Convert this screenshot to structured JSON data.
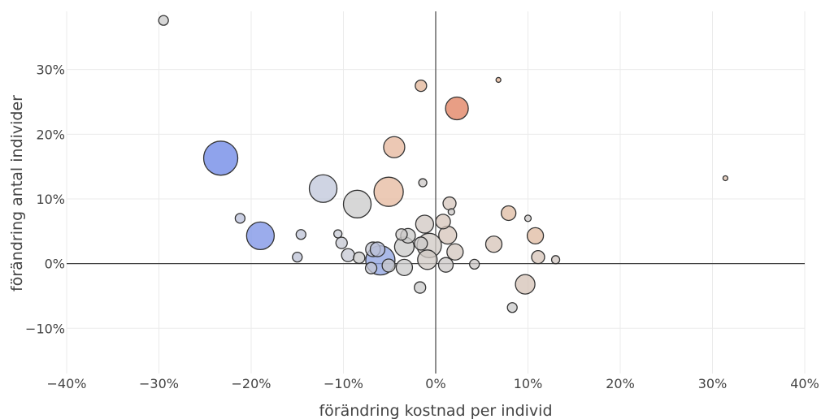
{
  "chart_data": {
    "type": "scatter",
    "title": "",
    "xlabel": "förändring kostnad per individ",
    "ylabel": "förändring antal individer",
    "xlim": [
      -40,
      40
    ],
    "ylim": [
      -17,
      39
    ],
    "x_ticks": [
      -40,
      -30,
      -20,
      -10,
      0,
      10,
      20,
      30,
      40
    ],
    "x_tick_labels": [
      "−40%",
      "−30%",
      "−20%",
      "−10%",
      "0%",
      "10%",
      "20%",
      "30%",
      "40%"
    ],
    "y_ticks": [
      -10,
      0,
      10,
      20,
      30
    ],
    "y_tick_labels": [
      "−10%",
      "0%",
      "10%",
      "20%",
      "30%"
    ],
    "grid": true,
    "zero_lines": true,
    "legend": "none",
    "bubble_style": {
      "stroke": "#333333",
      "opacity": 0.75
    },
    "points": [
      {
        "x": -29.5,
        "y": 37.6,
        "size": 6,
        "color": "#c9c9c9"
      },
      {
        "x": 6.8,
        "y": 28.4,
        "size": 3,
        "color": "#e3b394"
      },
      {
        "x": -1.6,
        "y": 27.5,
        "size": 7,
        "color": "#e2b497"
      },
      {
        "x": 2.3,
        "y": 24.0,
        "size": 14,
        "color": "#e07d5c"
      },
      {
        "x": -23.3,
        "y": 16.3,
        "size": 21,
        "color": "#6a84e6"
      },
      {
        "x": -4.5,
        "y": 18.0,
        "size": 13,
        "color": "#e5b59b"
      },
      {
        "x": 31.4,
        "y": 13.2,
        "size": 3,
        "color": "#dcc0ad"
      },
      {
        "x": -1.4,
        "y": 12.5,
        "size": 5,
        "color": "#cbc7c5"
      },
      {
        "x": -12.2,
        "y": 11.6,
        "size": 17,
        "color": "#bfc5d9"
      },
      {
        "x": -5.1,
        "y": 11.1,
        "size": 18,
        "color": "#e5b89e"
      },
      {
        "x": -8.5,
        "y": 9.2,
        "size": 17,
        "color": "#c9c9c9"
      },
      {
        "x": 1.5,
        "y": 9.3,
        "size": 8,
        "color": "#d6c6bc"
      },
      {
        "x": 1.7,
        "y": 8.0,
        "size": 4,
        "color": "#cbc7c5"
      },
      {
        "x": 7.9,
        "y": 7.8,
        "size": 9,
        "color": "#dfbba2"
      },
      {
        "x": -21.2,
        "y": 7.0,
        "size": 6,
        "color": "#b8bfd9"
      },
      {
        "x": 10.0,
        "y": 7.0,
        "size": 4,
        "color": "#cbc7c5"
      },
      {
        "x": 0.8,
        "y": 6.5,
        "size": 9,
        "color": "#d5c4b9"
      },
      {
        "x": -1.2,
        "y": 6.1,
        "size": 11,
        "color": "#d0c7c2"
      },
      {
        "x": -19.0,
        "y": 4.3,
        "size": 17,
        "color": "#7990e6"
      },
      {
        "x": -14.6,
        "y": 4.5,
        "size": 6,
        "color": "#bcc2d6"
      },
      {
        "x": -10.6,
        "y": 4.6,
        "size": 5,
        "color": "#c5c8d3"
      },
      {
        "x": -3.7,
        "y": 4.5,
        "size": 7,
        "color": "#cccac8"
      },
      {
        "x": -3.0,
        "y": 4.3,
        "size": 9,
        "color": "#cac9c8"
      },
      {
        "x": 1.3,
        "y": 4.4,
        "size": 11,
        "color": "#d5c4b9"
      },
      {
        "x": 10.8,
        "y": 4.3,
        "size": 10,
        "color": "#dfb9a0"
      },
      {
        "x": -10.2,
        "y": 3.2,
        "size": 7,
        "color": "#c5c8d3"
      },
      {
        "x": -1.6,
        "y": 3.1,
        "size": 8,
        "color": "#cccac8"
      },
      {
        "x": -0.7,
        "y": 2.8,
        "size": 15,
        "color": "#cfc8c3"
      },
      {
        "x": 6.3,
        "y": 3.0,
        "size": 10,
        "color": "#d6c3b7"
      },
      {
        "x": -3.4,
        "y": 2.6,
        "size": 12,
        "color": "#cac9c8"
      },
      {
        "x": -6.8,
        "y": 2.2,
        "size": 9,
        "color": "#c3c5d1"
      },
      {
        "x": -6.3,
        "y": 2.2,
        "size": 9,
        "color": "#b8bfd9"
      },
      {
        "x": 2.1,
        "y": 1.8,
        "size": 10,
        "color": "#d2c5bd"
      },
      {
        "x": -9.5,
        "y": 1.3,
        "size": 8,
        "color": "#c5c8d3"
      },
      {
        "x": -8.3,
        "y": 0.9,
        "size": 7,
        "color": "#c9c9c9"
      },
      {
        "x": -15.0,
        "y": 1.0,
        "size": 6,
        "color": "#bcc2d6"
      },
      {
        "x": 11.1,
        "y": 1.0,
        "size": 8,
        "color": "#d6c3b7"
      },
      {
        "x": 13.0,
        "y": 0.6,
        "size": 5,
        "color": "#d0c6c0"
      },
      {
        "x": -6.0,
        "y": 0.5,
        "size": 18,
        "color": "#8ea1e0"
      },
      {
        "x": -0.9,
        "y": 0.6,
        "size": 12,
        "color": "#cfc8c3"
      },
      {
        "x": 1.1,
        "y": -0.2,
        "size": 9,
        "color": "#cbc7c5"
      },
      {
        "x": 4.2,
        "y": -0.1,
        "size": 6,
        "color": "#cbc7c5"
      },
      {
        "x": -5.1,
        "y": -0.3,
        "size": 8,
        "color": "#c9c9c9"
      },
      {
        "x": -3.4,
        "y": -0.6,
        "size": 10,
        "color": "#c9c9c9"
      },
      {
        "x": -7.0,
        "y": -0.7,
        "size": 7,
        "color": "#c5c8d3"
      },
      {
        "x": 9.7,
        "y": -3.2,
        "size": 12,
        "color": "#d4c2b6"
      },
      {
        "x": -1.7,
        "y": -3.7,
        "size": 7,
        "color": "#c9c9c9"
      },
      {
        "x": 8.3,
        "y": -6.8,
        "size": 6,
        "color": "#c9c9c9"
      }
    ]
  }
}
